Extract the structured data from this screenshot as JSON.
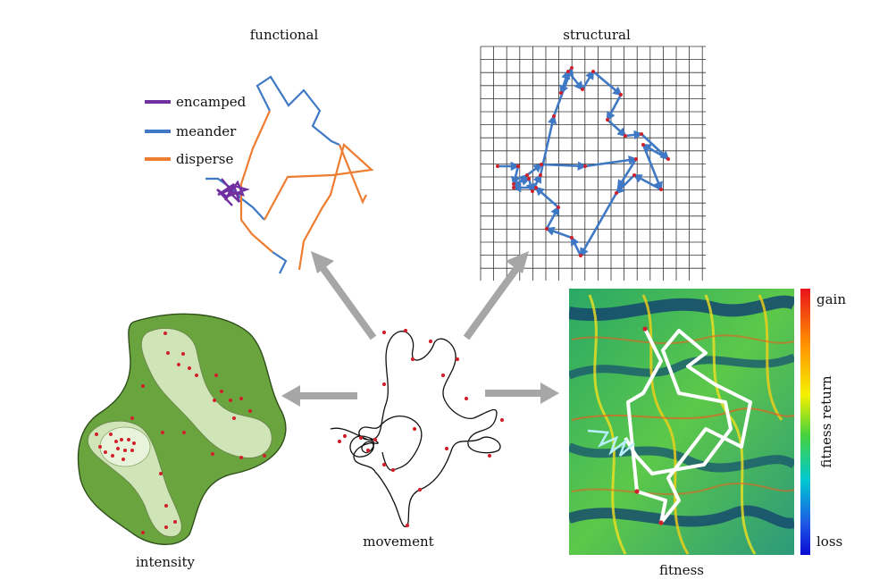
{
  "panels": {
    "functional": {
      "title": "functional"
    },
    "structural": {
      "title": "structural"
    },
    "intensity": {
      "title": "intensity"
    },
    "movement": {
      "title": "movement"
    },
    "fitness": {
      "title": "fitness"
    }
  },
  "legend": {
    "items": [
      {
        "label": "encamped",
        "color": "#7030a0"
      },
      {
        "label": "meander",
        "color": "#3f78c4"
      },
      {
        "label": "disperse",
        "color": "#ed7d31"
      }
    ]
  },
  "colorbar": {
    "top_label": "gain",
    "axis_label": "fitness return",
    "bottom_label": "loss"
  },
  "colors": {
    "arrow": "#a6a6a6",
    "track": "#111111",
    "point": "#d0202a",
    "habitat_outer": "#6aa43e",
    "habitat_inner": "#cfe5b7",
    "grid": "#333333",
    "structural_arrow": "#3f78c4"
  }
}
